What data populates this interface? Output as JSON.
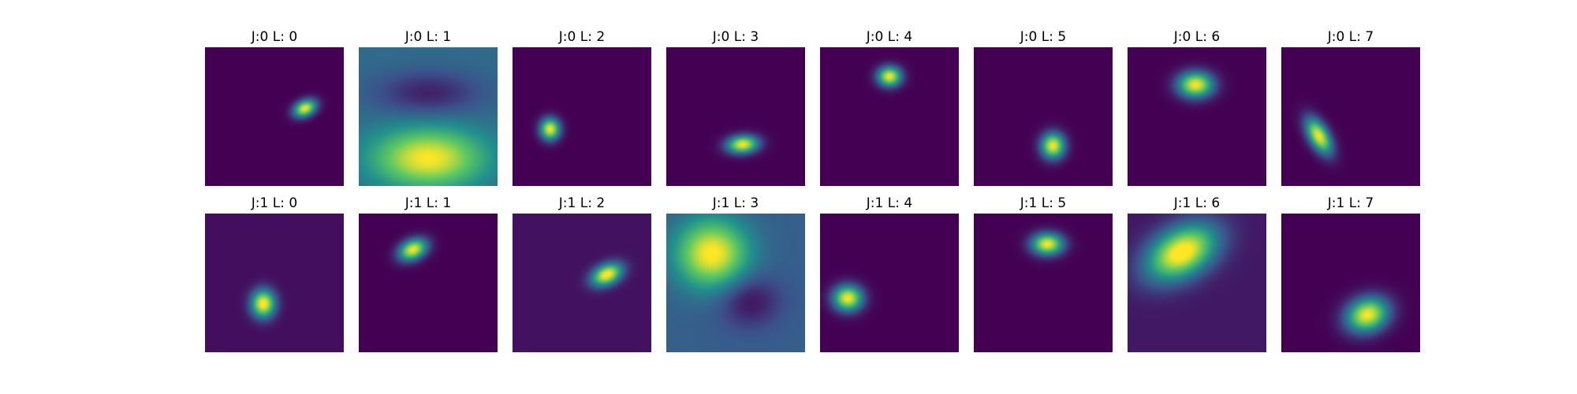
{
  "figure": {
    "colormap": "viridis",
    "background": "#ffffff",
    "colormap_stops": [
      "#440154",
      "#3b528b",
      "#21918c",
      "#5ec962",
      "#fde725"
    ]
  },
  "chart_data": [
    {
      "type": "heatmap",
      "title": "J:0 L: 0",
      "background_level": 0.0,
      "blobs": [
        {
          "x": 0.72,
          "y": 0.44,
          "sx": 0.06,
          "sy": 0.04,
          "angle": -25,
          "amp": 1.0
        }
      ]
    },
    {
      "type": "heatmap",
      "title": "J:0 L: 1",
      "background_level": 0.35,
      "blobs": [
        {
          "x": 0.5,
          "y": 0.8,
          "sx": 0.28,
          "sy": 0.15,
          "angle": 0,
          "amp": 0.65
        },
        {
          "x": 0.5,
          "y": 0.33,
          "sx": 0.26,
          "sy": 0.11,
          "angle": 0,
          "amp": -0.25
        }
      ]
    },
    {
      "type": "heatmap",
      "title": "J:0 L: 2",
      "background_level": 0.0,
      "blobs": [
        {
          "x": 0.27,
          "y": 0.59,
          "sx": 0.05,
          "sy": 0.055,
          "angle": 0,
          "amp": 1.0
        }
      ]
    },
    {
      "type": "heatmap",
      "title": "J:0 L: 3",
      "background_level": 0.0,
      "blobs": [
        {
          "x": 0.55,
          "y": 0.7,
          "sx": 0.08,
          "sy": 0.045,
          "angle": -5,
          "amp": 1.0
        }
      ]
    },
    {
      "type": "heatmap",
      "title": "J:0 L: 4",
      "background_level": 0.0,
      "blobs": [
        {
          "x": 0.5,
          "y": 0.21,
          "sx": 0.06,
          "sy": 0.05,
          "angle": 0,
          "amp": 1.0
        }
      ]
    },
    {
      "type": "heatmap",
      "title": "J:0 L: 5",
      "background_level": 0.0,
      "blobs": [
        {
          "x": 0.57,
          "y": 0.71,
          "sx": 0.06,
          "sy": 0.065,
          "angle": 0,
          "amp": 1.0
        }
      ]
    },
    {
      "type": "heatmap",
      "title": "J:0 L: 6",
      "background_level": 0.0,
      "blobs": [
        {
          "x": 0.49,
          "y": 0.27,
          "sx": 0.09,
          "sy": 0.065,
          "angle": 0,
          "amp": 1.0
        }
      ]
    },
    {
      "type": "heatmap",
      "title": "J:0 L: 7",
      "background_level": 0.0,
      "blobs": [
        {
          "x": 0.27,
          "y": 0.64,
          "sx": 0.05,
          "sy": 0.1,
          "angle": -30,
          "amp": 1.0
        }
      ]
    },
    {
      "type": "heatmap",
      "title": "J:1 L: 0",
      "background_level": 0.04,
      "blobs": [
        {
          "x": 0.42,
          "y": 0.65,
          "sx": 0.06,
          "sy": 0.07,
          "angle": 0,
          "amp": 1.0
        }
      ]
    },
    {
      "type": "heatmap",
      "title": "J:1 L: 1",
      "background_level": 0.0,
      "blobs": [
        {
          "x": 0.39,
          "y": 0.26,
          "sx": 0.075,
          "sy": 0.05,
          "angle": -25,
          "amp": 1.0
        }
      ]
    },
    {
      "type": "heatmap",
      "title": "J:1 L: 2",
      "background_level": 0.05,
      "blobs": [
        {
          "x": 0.68,
          "y": 0.44,
          "sx": 0.08,
          "sy": 0.05,
          "angle": -25,
          "amp": 1.0
        }
      ]
    },
    {
      "type": "heatmap",
      "title": "J:1 L: 3",
      "background_level": 0.3,
      "blobs": [
        {
          "x": 0.33,
          "y": 0.29,
          "sx": 0.18,
          "sy": 0.17,
          "angle": 0,
          "amp": 0.72
        },
        {
          "x": 0.6,
          "y": 0.63,
          "sx": 0.15,
          "sy": 0.13,
          "angle": 0,
          "amp": -0.25
        }
      ]
    },
    {
      "type": "heatmap",
      "title": "J:1 L: 4",
      "background_level": 0.0,
      "blobs": [
        {
          "x": 0.2,
          "y": 0.61,
          "sx": 0.075,
          "sy": 0.065,
          "angle": 0,
          "amp": 1.0
        }
      ]
    },
    {
      "type": "heatmap",
      "title": "J:1 L: 5",
      "background_level": 0.0,
      "blobs": [
        {
          "x": 0.53,
          "y": 0.22,
          "sx": 0.08,
          "sy": 0.055,
          "angle": 0,
          "amp": 1.0
        }
      ]
    },
    {
      "type": "heatmap",
      "title": "J:1 L: 6",
      "background_level": 0.07,
      "blobs": [
        {
          "x": 0.39,
          "y": 0.28,
          "sx": 0.19,
          "sy": 0.12,
          "angle": -30,
          "amp": 1.0
        }
      ]
    },
    {
      "type": "heatmap",
      "title": "J:1 L: 7",
      "background_level": 0.0,
      "blobs": [
        {
          "x": 0.62,
          "y": 0.73,
          "sx": 0.11,
          "sy": 0.085,
          "angle": -20,
          "amp": 1.0
        }
      ]
    }
  ]
}
